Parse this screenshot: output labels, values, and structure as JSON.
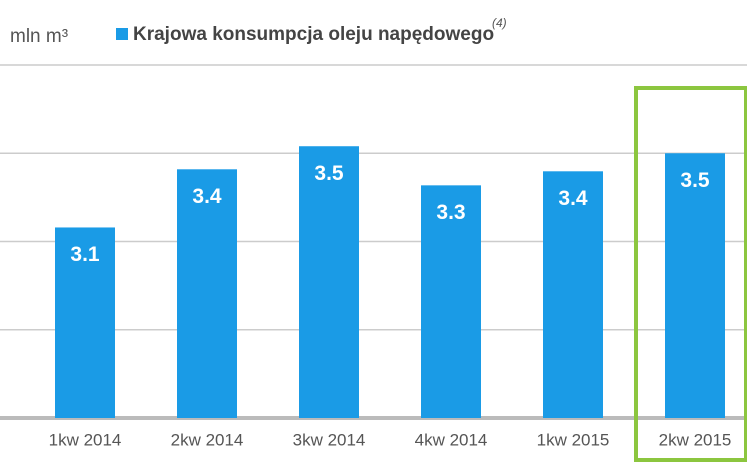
{
  "chart_data": {
    "type": "bar",
    "y_label": "mln m³",
    "categories": [
      "1kw 2014",
      "2kw 2014",
      "3kw 2014",
      "4kw 2014",
      "1kw 2015",
      "2kw 2015"
    ],
    "series": [
      {
        "name": "Krajowa konsumpcja oleju napędowego",
        "color": "#1a9be6",
        "values": [
          3.09,
          3.38,
          3.495,
          3.3,
          3.37,
          3.46
        ],
        "value_labels": [
          "3.1",
          "3.4",
          "3.5",
          "3.3",
          "3.4",
          "3.5"
        ]
      }
    ],
    "legend_note": "(4)",
    "ylim": [
      2.14,
      3.9
    ],
    "yticks": [
      2.14,
      2.58,
      3.02,
      3.46,
      3.9
    ],
    "grid": true
  }
}
